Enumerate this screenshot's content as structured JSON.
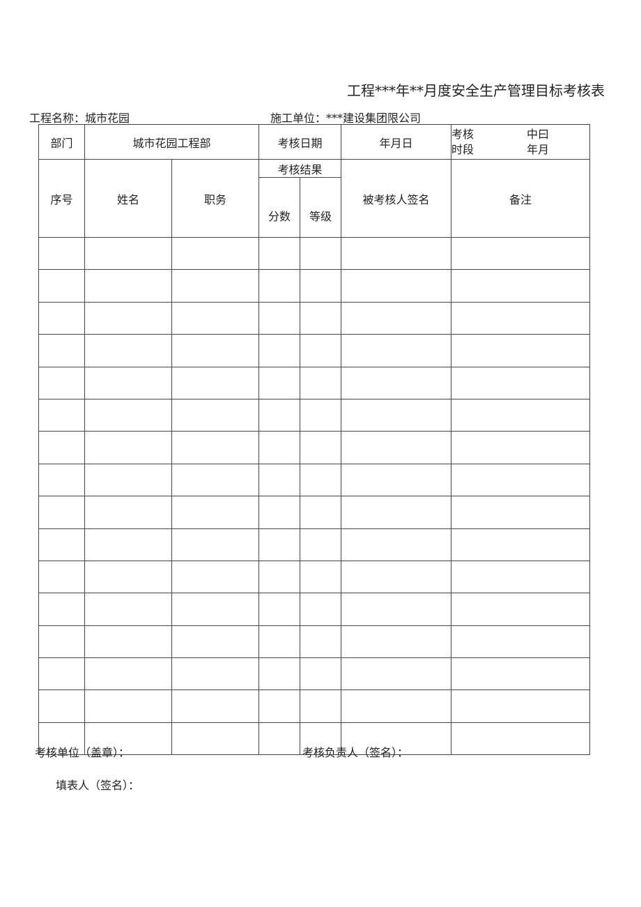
{
  "title": "工程***年**月度安全生产管理目标考核表",
  "project": {
    "label": "工程名称：城市花园"
  },
  "contractor": {
    "label": "施工单位：***建设集团限公司"
  },
  "header": {
    "dept_label": "部门",
    "dept_value": "城市花园工程部",
    "date_label": "考核日期",
    "date_value": "年月日",
    "period_label_1": "考核",
    "period_label_2": "时段",
    "period_value_1": "中曰",
    "period_value_2": "年月"
  },
  "columns": {
    "no": "序号",
    "name": "姓名",
    "position": "职务",
    "result": "考核结果",
    "score": "分数",
    "grade": "等级",
    "signature": "被考核人签名",
    "remark": "备注"
  },
  "rows": 16,
  "footer": {
    "unit": "考核单位（盖章）：",
    "leader": "考核负责人（签名）：",
    "filler": "填表人（签名）："
  }
}
